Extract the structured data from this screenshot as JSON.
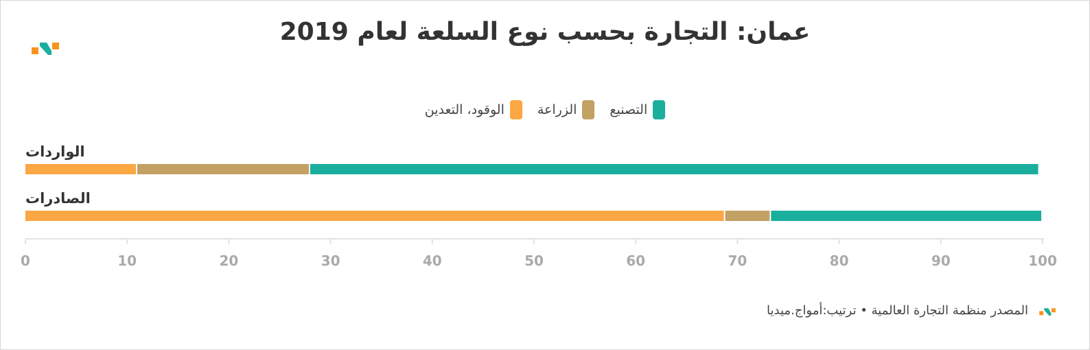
{
  "title": "عمان: التجارة بحسب نوع السلعة لعام 2019",
  "source_text": "المصدر منظمة التجارة العالمية • ترتيب:أمواج.ميديا",
  "colors": {
    "fuel_mining": "#fba744",
    "agriculture": "#c3a064",
    "manufacturing": "#1aaf9d",
    "logo_orange": "#f7941d",
    "logo_teal": "#1aaf9d",
    "axis_text": "#aaaaaa",
    "axis_line": "#e3e3e3"
  },
  "chart_data": {
    "type": "bar",
    "orientation": "horizontal",
    "stacked": true,
    "categories": [
      "الواردات",
      "الصادرات"
    ],
    "series": [
      {
        "name": "الوقود، التعدين",
        "color": "#fba744",
        "values": [
          11,
          68.8
        ]
      },
      {
        "name": "الزراعة",
        "color": "#c3a064",
        "values": [
          17,
          4.5
        ]
      },
      {
        "name": "التصنيع",
        "color": "#1aaf9d",
        "values": [
          71.7,
          26.7
        ]
      }
    ],
    "legend_order": [
      "التصنيع",
      "الزراعة",
      "الوقود، التعدين"
    ],
    "xlim": [
      0,
      100
    ],
    "xticks": [
      "0",
      "10",
      "20",
      "30",
      "40",
      "50",
      "60",
      "70",
      "80",
      "90",
      "100"
    ],
    "grid": false,
    "legend_position": "top"
  }
}
